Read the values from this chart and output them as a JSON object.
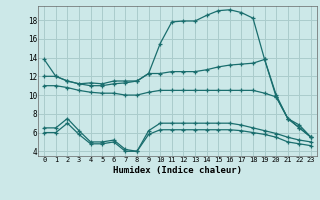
{
  "title": "",
  "xlabel": "Humidex (Indice chaleur)",
  "bg_color": "#cce8e8",
  "grid_color": "#aacccc",
  "line_color": "#1a6e6e",
  "xlim": [
    -0.5,
    23.5
  ],
  "ylim": [
    3.5,
    19.5
  ],
  "yticks": [
    4,
    6,
    8,
    10,
    12,
    14,
    16,
    18
  ],
  "xticks": [
    0,
    1,
    2,
    3,
    4,
    5,
    6,
    7,
    8,
    9,
    10,
    11,
    12,
    13,
    14,
    15,
    16,
    17,
    18,
    19,
    20,
    21,
    22,
    23
  ],
  "series": [
    {
      "x": [
        0,
        1,
        2,
        3,
        4,
        5,
        6,
        7,
        8,
        9,
        10,
        11,
        12,
        13,
        14,
        15,
        16,
        17,
        18,
        19,
        20,
        21,
        22,
        23
      ],
      "y": [
        13.8,
        12.0,
        11.5,
        11.2,
        11.3,
        11.2,
        11.5,
        11.5,
        11.5,
        12.3,
        15.5,
        17.8,
        17.9,
        17.9,
        18.5,
        19.0,
        19.1,
        18.8,
        18.2,
        13.8,
        10.0,
        7.5,
        6.8,
        5.5
      ]
    },
    {
      "x": [
        0,
        1,
        2,
        3,
        4,
        5,
        6,
        7,
        8,
        9,
        10,
        11,
        12,
        13,
        14,
        15,
        16,
        17,
        18,
        19,
        20,
        21,
        22,
        23
      ],
      "y": [
        12.0,
        12.0,
        11.5,
        11.2,
        11.0,
        11.0,
        11.2,
        11.3,
        11.5,
        12.3,
        12.3,
        12.5,
        12.5,
        12.5,
        12.7,
        13.0,
        13.2,
        13.3,
        13.4,
        13.8,
        9.8,
        7.5,
        6.5,
        5.5
      ]
    },
    {
      "x": [
        0,
        1,
        2,
        3,
        4,
        5,
        6,
        7,
        8,
        9,
        10,
        11,
        12,
        13,
        14,
        15,
        16,
        17,
        18,
        19,
        20,
        21,
        22,
        23
      ],
      "y": [
        11.0,
        11.0,
        10.8,
        10.5,
        10.3,
        10.2,
        10.2,
        10.0,
        10.0,
        10.3,
        10.5,
        10.5,
        10.5,
        10.5,
        10.5,
        10.5,
        10.5,
        10.5,
        10.5,
        10.2,
        9.8,
        7.5,
        6.5,
        5.5
      ]
    },
    {
      "x": [
        0,
        1,
        2,
        3,
        4,
        5,
        6,
        7,
        8,
        9,
        10,
        11,
        12,
        13,
        14,
        15,
        16,
        17,
        18,
        19,
        20,
        21,
        22,
        23
      ],
      "y": [
        6.5,
        6.5,
        7.5,
        6.2,
        5.0,
        5.0,
        5.2,
        4.2,
        4.0,
        6.2,
        7.0,
        7.0,
        7.0,
        7.0,
        7.0,
        7.0,
        7.0,
        6.8,
        6.5,
        6.2,
        5.9,
        5.5,
        5.2,
        5.0
      ]
    },
    {
      "x": [
        0,
        1,
        2,
        3,
        4,
        5,
        6,
        7,
        8,
        9,
        10,
        11,
        12,
        13,
        14,
        15,
        16,
        17,
        18,
        19,
        20,
        21,
        22,
        23
      ],
      "y": [
        6.0,
        6.0,
        7.0,
        5.8,
        4.8,
        4.8,
        5.0,
        4.0,
        4.0,
        5.8,
        6.3,
        6.3,
        6.3,
        6.3,
        6.3,
        6.3,
        6.3,
        6.2,
        6.0,
        5.8,
        5.5,
        5.0,
        4.8,
        4.6
      ]
    }
  ]
}
